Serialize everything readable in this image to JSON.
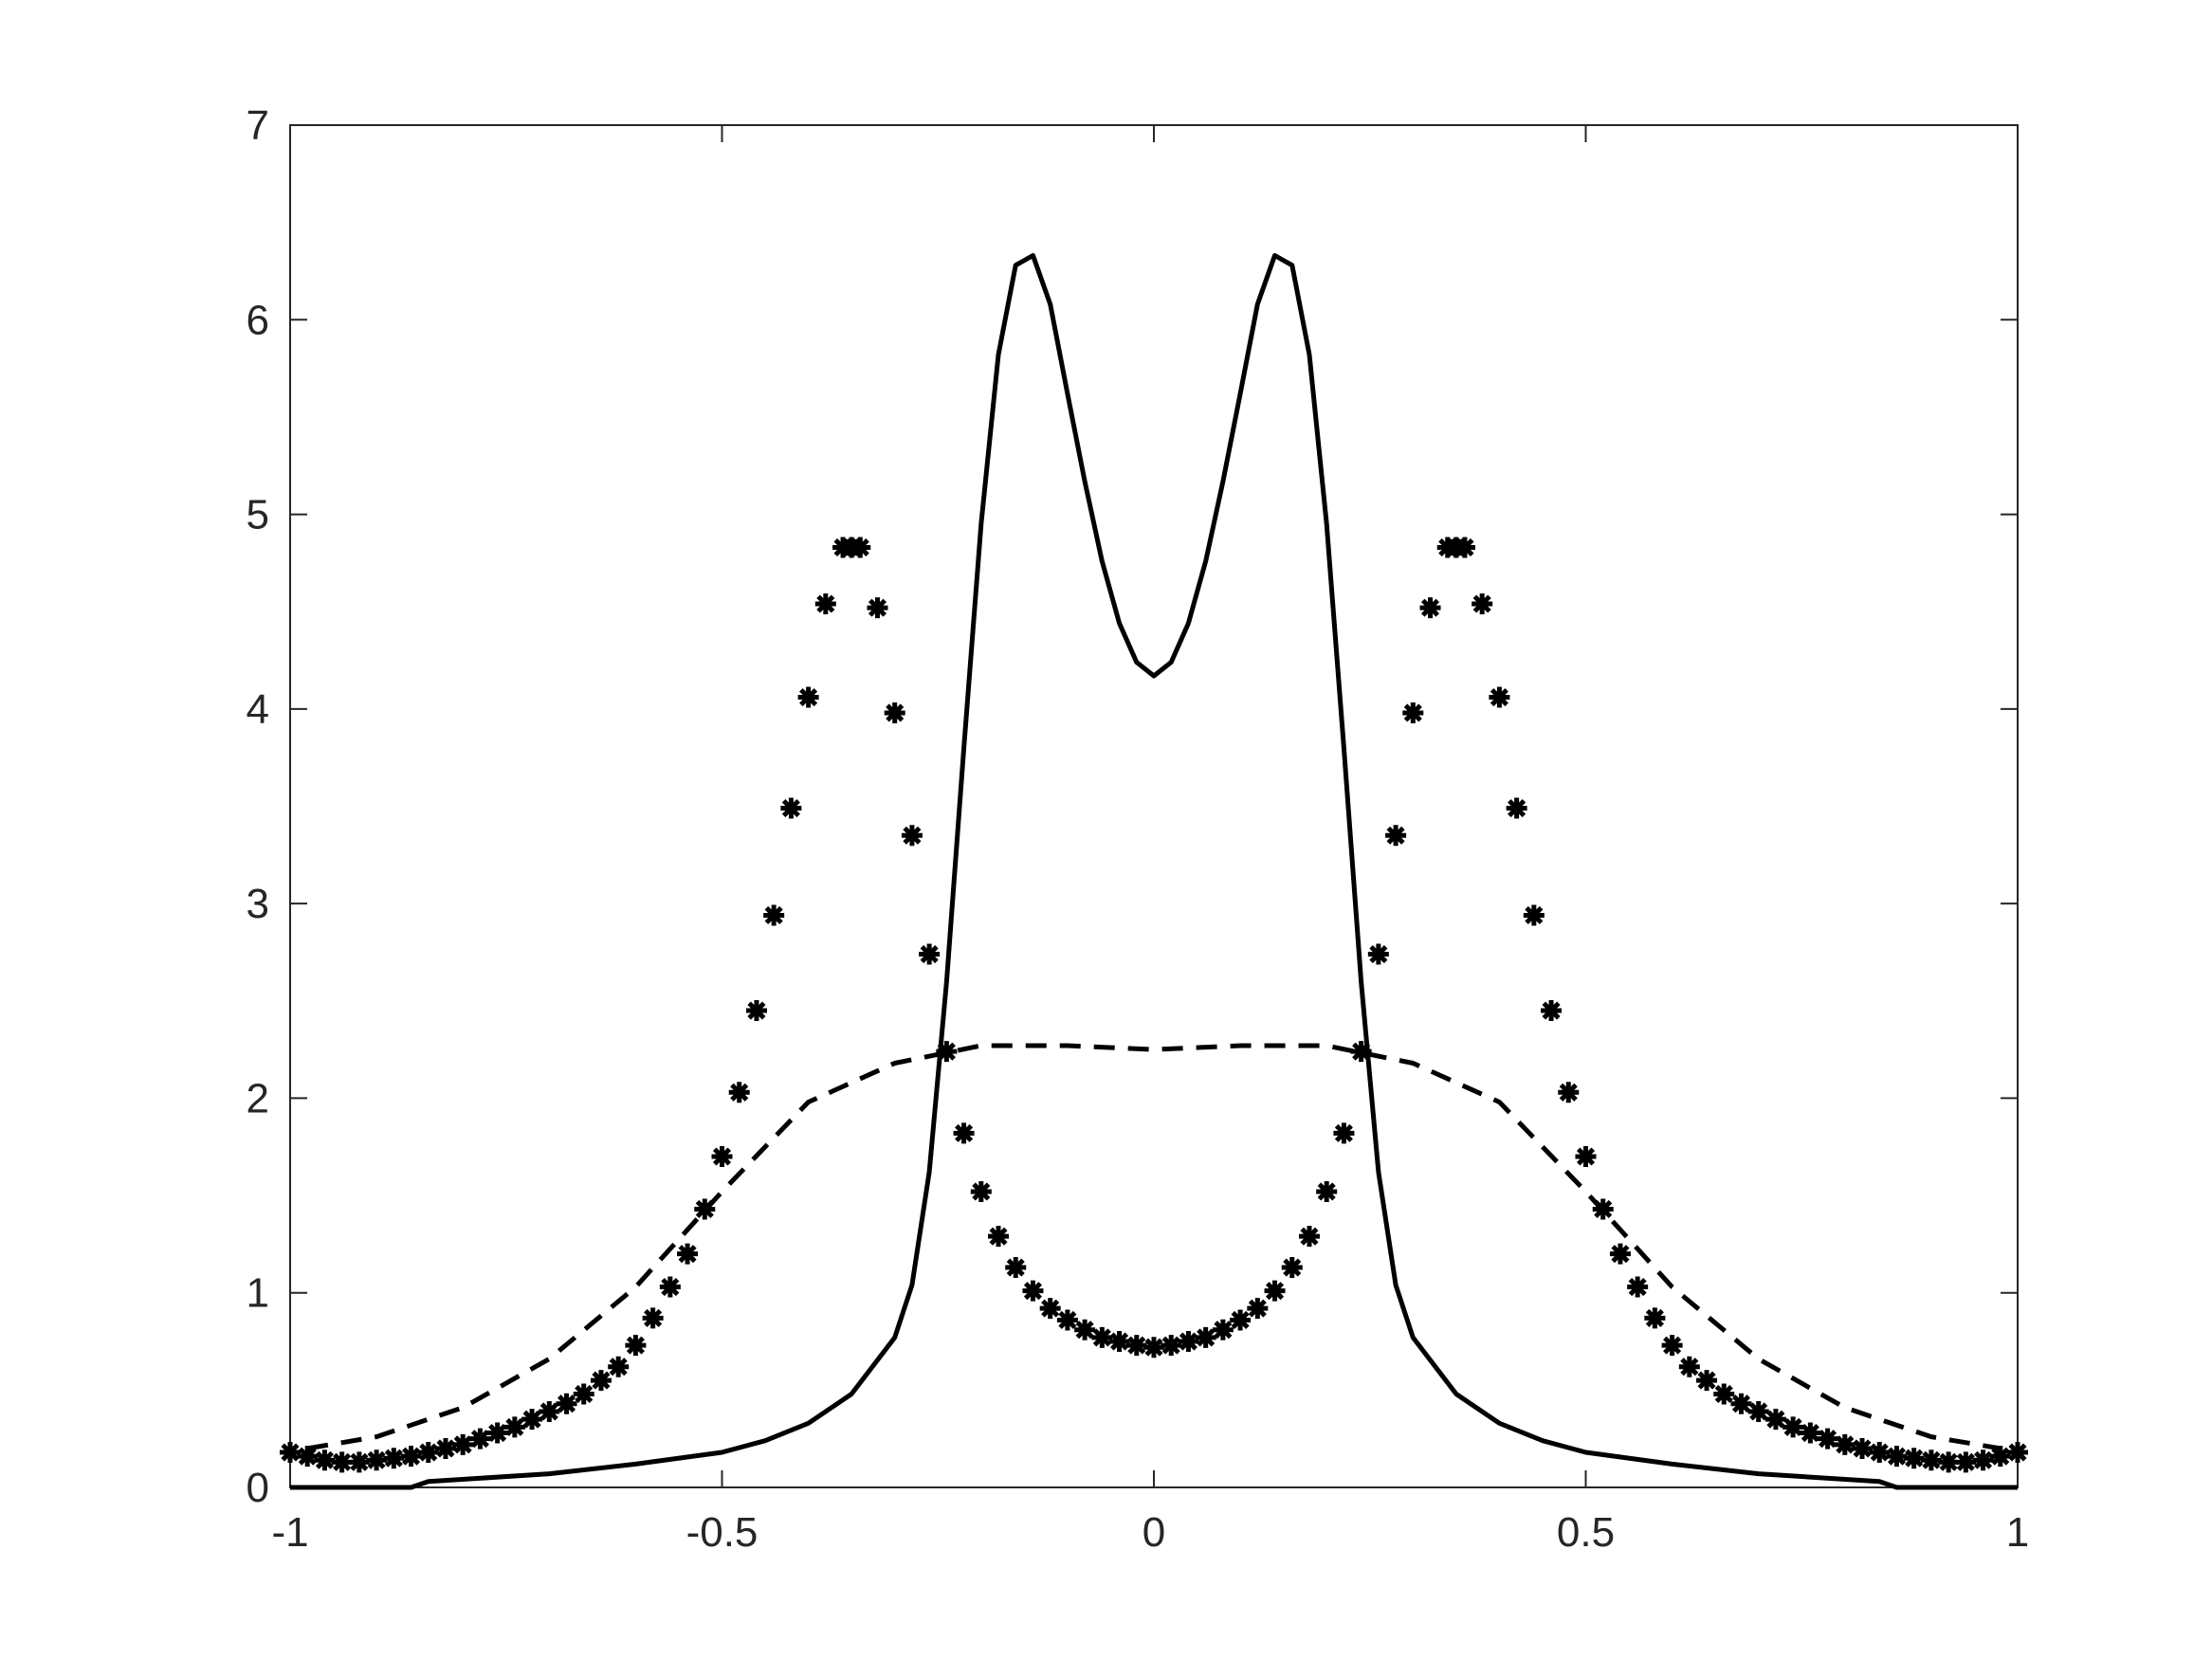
{
  "chart_data": {
    "type": "line",
    "xlim": [
      -1,
      1
    ],
    "ylim": [
      0,
      7
    ],
    "xticks": [
      -1,
      -0.5,
      0,
      0.5,
      1
    ],
    "yticks": [
      0,
      1,
      2,
      3,
      4,
      5,
      6,
      7
    ],
    "series": [
      {
        "style": "solid",
        "color": "#000000",
        "x": [
          -1,
          -0.86,
          -0.84,
          -0.7,
          -0.6,
          -0.5,
          -0.45,
          -0.4,
          -0.35,
          -0.3,
          -0.28,
          -0.26,
          -0.24,
          -0.22,
          -0.2,
          -0.18,
          -0.16,
          -0.14,
          -0.12,
          -0.1,
          -0.08,
          -0.06,
          -0.04,
          -0.02,
          0,
          0.02,
          0.04,
          0.06,
          0.08,
          0.1,
          0.12,
          0.14,
          0.16,
          0.18,
          0.2,
          0.22,
          0.24,
          0.26,
          0.28,
          0.3,
          0.35,
          0.4,
          0.45,
          0.5,
          0.6,
          0.7,
          0.84,
          0.86,
          1
        ],
        "values": [
          0,
          0,
          0.03,
          0.07,
          0.12,
          0.18,
          0.24,
          0.33,
          0.48,
          0.77,
          1.04,
          1.62,
          2.6,
          3.8,
          4.95,
          5.82,
          6.28,
          6.33,
          6.08,
          5.62,
          5.17,
          4.76,
          4.44,
          4.24,
          4.17,
          4.24,
          4.44,
          4.76,
          5.17,
          5.62,
          6.08,
          6.33,
          6.28,
          5.82,
          4.95,
          3.8,
          2.6,
          1.62,
          1.04,
          0.77,
          0.48,
          0.33,
          0.24,
          0.18,
          0.12,
          0.07,
          0.03,
          0,
          0
        ]
      },
      {
        "style": "dashed",
        "color": "#000000",
        "x": [
          -0.98,
          -0.9,
          -0.8,
          -0.7,
          -0.6,
          -0.5,
          -0.4,
          -0.3,
          -0.2,
          -0.1,
          0,
          0.1,
          0.2,
          0.3,
          0.4,
          0.5,
          0.6,
          0.7,
          0.8,
          0.9,
          0.98
        ],
        "values": [
          0.2,
          0.26,
          0.41,
          0.66,
          1.03,
          1.52,
          1.98,
          2.18,
          2.27,
          2.27,
          2.25,
          2.27,
          2.27,
          2.18,
          1.98,
          1.52,
          1.03,
          0.66,
          0.41,
          0.26,
          0.2
        ]
      },
      {
        "style": "markers",
        "color": "#000000",
        "x": [
          -1,
          -0.98,
          -0.96,
          -0.94,
          -0.92,
          -0.9,
          -0.88,
          -0.86,
          -0.84,
          -0.82,
          -0.8,
          -0.78,
          -0.76,
          -0.74,
          -0.72,
          -0.7,
          -0.68,
          -0.66,
          -0.64,
          -0.62,
          -0.6,
          -0.58,
          -0.56,
          -0.54,
          -0.52,
          -0.5,
          -0.48,
          -0.46,
          -0.44,
          -0.42,
          -0.4,
          -0.38,
          -0.36,
          -0.35,
          -0.34,
          -0.32,
          -0.3,
          -0.28,
          -0.26,
          -0.24,
          -0.22,
          -0.2,
          -0.18,
          -0.16,
          -0.14,
          -0.12,
          -0.1,
          -0.08,
          -0.06,
          -0.04,
          -0.02,
          0,
          0.02,
          0.04,
          0.06,
          0.08,
          0.1,
          0.12,
          0.14,
          0.16,
          0.18,
          0.2,
          0.22,
          0.24,
          0.26,
          0.28,
          0.3,
          0.32,
          0.34,
          0.35,
          0.36,
          0.38,
          0.4,
          0.42,
          0.44,
          0.46,
          0.48,
          0.5,
          0.52,
          0.54,
          0.56,
          0.58,
          0.6,
          0.62,
          0.64,
          0.66,
          0.68,
          0.7,
          0.72,
          0.74,
          0.76,
          0.78,
          0.8,
          0.82,
          0.84,
          0.86,
          0.88,
          0.9,
          0.92,
          0.94,
          0.96,
          0.98,
          1
        ],
        "values": [
          0.18,
          0.16,
          0.14,
          0.13,
          0.13,
          0.14,
          0.15,
          0.16,
          0.18,
          0.2,
          0.22,
          0.25,
          0.28,
          0.31,
          0.35,
          0.39,
          0.43,
          0.48,
          0.55,
          0.62,
          0.73,
          0.87,
          1.03,
          1.2,
          1.43,
          1.7,
          2.03,
          2.45,
          2.94,
          3.49,
          4.06,
          4.54,
          4.83,
          4.83,
          4.83,
          4.52,
          3.98,
          3.35,
          2.74,
          2.24,
          1.82,
          1.52,
          1.29,
          1.13,
          1.01,
          0.92,
          0.86,
          0.81,
          0.77,
          0.75,
          0.73,
          0.72,
          0.73,
          0.75,
          0.77,
          0.81,
          0.86,
          0.92,
          1.01,
          1.13,
          1.29,
          1.52,
          1.82,
          2.24,
          2.74,
          3.35,
          3.98,
          4.52,
          4.83,
          4.83,
          4.83,
          4.54,
          4.06,
          3.49,
          2.94,
          2.45,
          2.03,
          1.7,
          1.43,
          1.2,
          1.03,
          0.87,
          0.73,
          0.62,
          0.55,
          0.48,
          0.43,
          0.39,
          0.35,
          0.31,
          0.28,
          0.25,
          0.22,
          0.2,
          0.18,
          0.16,
          0.15,
          0.14,
          0.13,
          0.13,
          0.14,
          0.16,
          0.18
        ]
      }
    ]
  }
}
